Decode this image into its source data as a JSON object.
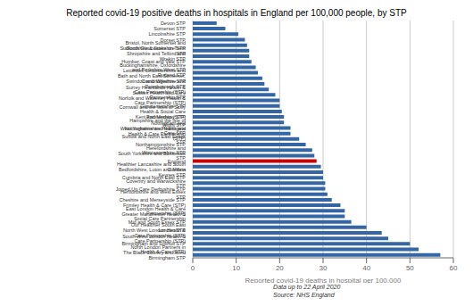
{
  "chart_data": {
    "type": "bar",
    "orientation": "horizontal",
    "title": "Reported covid-19 positive deaths in hospitals in England per 100,000 people, by STP",
    "xlabel": "Reported covid-19 deaths in hospital per 100,000",
    "annotations": [
      "Data up to 22 April 2020",
      "Source: NHS England"
    ],
    "categories": [
      "Devon STP",
      "Somerset STP",
      "Lincolnshire STP",
      "Dorset STP",
      "Bristol, North Somerset and South Gloucestershire STP",
      "Staffordshire & Stoke on Trent STP",
      "Shropshire and Telford and Wrekin STP",
      "Humber, Coast and Vale STP",
      "Buckinghamshire, Oxfordshire and Berkshire West STP",
      "Leicester, Leicestershire and Rutland STP",
      "Bath and North East Somerset, Swindon and Wiltshire STP",
      "Cambridgeshire and Peterborough STP",
      "Surrey Heartlands Health & Care Partnership (STP)",
      "Sussex Health and Care Partnership STP",
      "Norfolk and Waveney Health & Care Partnership (STP)",
      "Gloucestershire STP",
      "Cornwall and the Isles of Scilly Health & Social Care Partnership (STP)",
      "Kent and Medway STP",
      "Hampshire and the Isle of Wight STP",
      "Nottingham and Nottinghamshire Health and Care STP",
      "West Yorkshire and Harrogate Health & Care Partnership (STP)",
      "Suffolk and North East Essex STP",
      "Northamptonshire STP",
      "Herefordshire and Worcestershire STP",
      "South Yorkshire and Bassetlaw STP",
      "England",
      "Healthier Lancashire and South Cumbria",
      "Bedfordshire, Luton and Milton Keynes STP",
      "Cumbria and North East STP",
      "Coventry and Warwickshire STP",
      "Joined Up Care Derbyshire STP",
      "Hertfordshire and West Essex STP",
      "Cheshire and Merseyside STP",
      "Frimley Health & Care (STP)",
      "East London Health & Care Partnership (STP)",
      "Greater Manchester Health & Social Care Partnership",
      "Mid and South Essex STP",
      "Our Healthier South East London STP",
      "North West London Health & Care Partnership (STP)",
      "South West London Health & Care Partnership (STP)",
      "Birmingham and Solihull STP",
      "North London Partners in Health & Care (STP)",
      "The Black Country and West Birmingham STP"
    ],
    "values": [
      5.5,
      7.5,
      10.5,
      12.0,
      12.5,
      13.0,
      13.0,
      13.5,
      14.5,
      15.0,
      16.0,
      16.5,
      17.5,
      19.0,
      20.0,
      20.0,
      20.5,
      21.0,
      21.0,
      22.5,
      22.5,
      24.5,
      26.0,
      27.5,
      28.0,
      28.5,
      29.5,
      30.0,
      30.0,
      30.5,
      30.5,
      31.0,
      32.0,
      34.0,
      35.0,
      35.0,
      36.5,
      40.0,
      43.5,
      45.0,
      50.0,
      52.0,
      57.0
    ],
    "colors": [
      "#3465a4",
      "#3465a4",
      "#3465a4",
      "#3465a4",
      "#3465a4",
      "#3465a4",
      "#3465a4",
      "#3465a4",
      "#3465a4",
      "#3465a4",
      "#3465a4",
      "#3465a4",
      "#3465a4",
      "#3465a4",
      "#3465a4",
      "#3465a4",
      "#3465a4",
      "#3465a4",
      "#3465a4",
      "#3465a4",
      "#3465a4",
      "#3465a4",
      "#3465a4",
      "#3465a4",
      "#3465a4",
      "#cc0000",
      "#3465a4",
      "#3465a4",
      "#3465a4",
      "#3465a4",
      "#3465a4",
      "#3465a4",
      "#3465a4",
      "#3465a4",
      "#3465a4",
      "#3465a4",
      "#3465a4",
      "#3465a4",
      "#3465a4",
      "#3465a4",
      "#3465a4",
      "#3465a4",
      "#3465a4"
    ],
    "xlim": [
      0,
      60
    ],
    "xticks": [
      0,
      10,
      20,
      30,
      40,
      50,
      60
    ],
    "grid": true
  }
}
